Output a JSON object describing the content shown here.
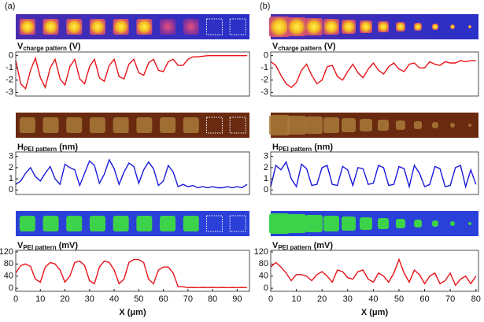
{
  "panel_labels": [
    "(a)",
    "(b)"
  ],
  "chart_data": [
    {
      "type": "line",
      "ylabel": {
        "symbol": "V",
        "subscript": "charge pattern",
        "unit": "(V)"
      },
      "x": [
        0,
        2,
        4,
        6,
        8,
        10,
        12,
        14,
        16,
        18,
        20,
        22,
        24,
        26,
        28,
        30,
        32,
        34,
        36,
        38,
        40,
        42,
        44,
        46,
        48,
        50,
        52,
        54,
        56,
        58,
        60,
        62,
        64,
        66,
        68,
        70,
        72,
        74,
        76,
        78,
        80,
        82,
        84,
        86,
        88,
        90,
        92,
        94
      ],
      "series": [
        {
          "color": "#e8141a",
          "values": [
            -0.4,
            -2.3,
            -2.7,
            -1.2,
            -0.2,
            -1.8,
            -2.6,
            -1.0,
            -0.3,
            -1.9,
            -2.4,
            -0.9,
            -0.3,
            -1.9,
            -2.3,
            -0.9,
            -0.3,
            -1.8,
            -2.1,
            -0.8,
            -0.3,
            -1.7,
            -1.9,
            -0.7,
            -0.3,
            -1.4,
            -1.6,
            -0.6,
            -0.3,
            -1.2,
            -1.3,
            -0.5,
            -0.3,
            -0.8,
            -0.8,
            -0.3,
            -0.1,
            -0.1,
            -0.05,
            0,
            0,
            0,
            0,
            0,
            0,
            0,
            0,
            0
          ]
        }
      ],
      "xlim": [
        0,
        95
      ],
      "ylim": [
        -3.3,
        0.3
      ],
      "yticks": [
        0,
        -1,
        -2,
        -3
      ]
    },
    {
      "type": "line",
      "ylabel": {
        "symbol": "H",
        "subscript": "PEI pattern",
        "unit": "(nm)"
      },
      "x": [
        0,
        2,
        4,
        6,
        8,
        10,
        12,
        14,
        16,
        18,
        20,
        22,
        24,
        26,
        28,
        30,
        32,
        34,
        36,
        38,
        40,
        42,
        44,
        46,
        48,
        50,
        52,
        54,
        56,
        58,
        60,
        62,
        64,
        66,
        68,
        70,
        72,
        74,
        76,
        78,
        80,
        82,
        84,
        86,
        88,
        90,
        92,
        94
      ],
      "series": [
        {
          "color": "#1a1adc",
          "values": [
            0.5,
            0.8,
            1.5,
            2.0,
            1.2,
            0.8,
            1.5,
            2.1,
            1.0,
            0.5,
            2.3,
            2.0,
            1.8,
            0.4,
            1.5,
            2.6,
            2.2,
            0.6,
            1.4,
            2.7,
            1.9,
            0.5,
            1.6,
            2.4,
            2.1,
            0.6,
            1.8,
            2.5,
            1.9,
            0.4,
            0.8,
            2.2,
            1.6,
            0.3,
            0.5,
            0.3,
            0.4,
            0.2,
            0.3,
            0.2,
            0.3,
            0.2,
            0.2,
            0.3,
            0.2,
            0.3,
            0.2,
            0.5
          ]
        }
      ],
      "xlim": [
        0,
        95
      ],
      "ylim": [
        -0.4,
        3.4
      ],
      "yticks": [
        0,
        1,
        2,
        3
      ]
    },
    {
      "type": "line",
      "ylabel": {
        "symbol": "V",
        "subscript": "PEI pattern",
        "unit": "(mV)"
      },
      "xlabel": "X (μm)",
      "x": [
        0,
        2,
        4,
        6,
        8,
        10,
        12,
        14,
        16,
        18,
        20,
        22,
        24,
        26,
        28,
        30,
        32,
        34,
        36,
        38,
        40,
        42,
        44,
        46,
        48,
        50,
        52,
        54,
        56,
        58,
        60,
        62,
        64,
        66,
        68,
        70,
        72,
        74,
        76,
        78,
        80,
        82,
        84,
        86,
        88,
        90,
        92,
        94
      ],
      "series": [
        {
          "color": "#e8141a",
          "values": [
            50,
            75,
            80,
            72,
            30,
            20,
            70,
            85,
            80,
            60,
            20,
            40,
            85,
            90,
            75,
            25,
            15,
            70,
            90,
            85,
            60,
            15,
            30,
            85,
            95,
            95,
            85,
            30,
            15,
            60,
            70,
            70,
            50,
            5,
            5,
            2,
            3,
            2,
            3,
            2,
            3,
            2,
            3,
            2,
            3,
            2,
            3,
            2
          ]
        }
      ],
      "xlim": [
        0,
        95
      ],
      "ylim": [
        -10,
        125
      ],
      "yticks": [
        0,
        40,
        80,
        120
      ],
      "xticks": [
        0,
        10,
        20,
        30,
        40,
        50,
        60,
        70,
        80,
        90
      ]
    },
    {
      "type": "line",
      "ylabel": {
        "symbol": "V",
        "subscript": "charge pattern",
        "unit": "(V)"
      },
      "x": [
        0,
        2,
        4,
        6,
        8,
        10,
        12,
        14,
        16,
        18,
        20,
        22,
        24,
        26,
        28,
        30,
        32,
        34,
        36,
        38,
        40,
        42,
        44,
        46,
        48,
        50,
        52,
        54,
        56,
        58,
        60,
        62,
        64,
        66,
        68,
        70,
        72,
        74,
        76,
        78,
        80
      ],
      "series": [
        {
          "color": "#e8141a",
          "values": [
            -0.5,
            -0.8,
            -1.6,
            -2.3,
            -2.6,
            -2.2,
            -1.2,
            -0.7,
            -1.6,
            -2.3,
            -2.0,
            -0.9,
            -0.8,
            -1.7,
            -2.0,
            -1.3,
            -0.7,
            -1.4,
            -1.8,
            -1.1,
            -0.6,
            -1.2,
            -1.5,
            -0.9,
            -0.6,
            -1.1,
            -1.3,
            -0.7,
            -0.6,
            -1.0,
            -1.0,
            -0.5,
            -0.7,
            -0.8,
            -0.5,
            -0.6,
            -0.6,
            -0.4,
            -0.5,
            -0.4,
            -0.4
          ]
        }
      ],
      "xlim": [
        0,
        81
      ],
      "ylim": [
        -3.3,
        0.3
      ],
      "yticks": [
        0,
        -1,
        -2,
        -3
      ]
    },
    {
      "type": "line",
      "ylabel": {
        "symbol": "H",
        "subscript": "PEI pattern",
        "unit": "(nm)"
      },
      "x": [
        0,
        2,
        4,
        6,
        8,
        10,
        12,
        14,
        16,
        18,
        20,
        22,
        24,
        26,
        28,
        30,
        32,
        34,
        36,
        38,
        40,
        42,
        44,
        46,
        48,
        50,
        52,
        54,
        56,
        58,
        60,
        62,
        64,
        66,
        68,
        70,
        72,
        74,
        76,
        78,
        80
      ],
      "series": [
        {
          "color": "#1a1adc",
          "values": [
            0.3,
            2.2,
            1.8,
            2.5,
            1.0,
            0.3,
            2.3,
            1.9,
            0.4,
            0.5,
            2.0,
            2.2,
            0.5,
            0.4,
            2.1,
            1.8,
            0.4,
            2.0,
            1.9,
            0.5,
            0.6,
            2.2,
            2.0,
            0.4,
            0.5,
            2.1,
            1.9,
            0.3,
            2.2,
            1.5,
            0.3,
            0.5,
            2.1,
            1.9,
            0.3,
            0.4,
            2.0,
            2.2,
            0.3,
            1.8,
            0.5
          ]
        }
      ],
      "xlim": [
        0,
        81
      ],
      "ylim": [
        -0.4,
        3.4
      ],
      "yticks": [
        0,
        1,
        2,
        3
      ]
    },
    {
      "type": "line",
      "ylabel": {
        "symbol": "V",
        "subscript": "PEI pattern",
        "unit": "(mV)"
      },
      "xlabel": "X (μm)",
      "x": [
        0,
        2,
        4,
        6,
        8,
        10,
        12,
        14,
        16,
        18,
        20,
        22,
        24,
        26,
        28,
        30,
        32,
        34,
        36,
        38,
        40,
        42,
        44,
        46,
        48,
        50,
        52,
        54,
        56,
        58,
        60,
        62,
        64,
        66,
        68,
        70,
        72,
        74,
        76,
        78,
        80
      ],
      "series": [
        {
          "color": "#e8141a",
          "values": [
            70,
            85,
            70,
            50,
            25,
            45,
            45,
            40,
            25,
            45,
            55,
            40,
            20,
            60,
            55,
            35,
            30,
            55,
            60,
            30,
            20,
            50,
            40,
            20,
            50,
            95,
            50,
            20,
            60,
            45,
            15,
            40,
            50,
            15,
            25,
            50,
            10,
            30,
            40,
            15,
            40
          ]
        }
      ],
      "xlim": [
        0,
        81
      ],
      "ylim": [
        -10,
        125
      ],
      "yticks": [
        0,
        40,
        80,
        120
      ],
      "xticks": [
        0,
        10,
        20,
        30,
        40,
        50,
        60,
        70,
        80
      ]
    }
  ]
}
